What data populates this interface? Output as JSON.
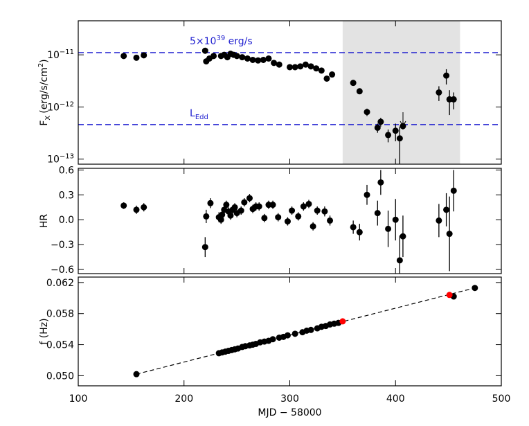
{
  "chart_data": [
    {
      "type": "scatter",
      "log_y": true,
      "color": "#000000",
      "ylabel": {
        "main": "F",
        "sub": "X",
        "unit": "(erg/s/cm",
        "sup": "2",
        "close": ")"
      },
      "ylim": [
        8e-14,
        4.5e-11
      ],
      "yticks": [
        {
          "value": 1e-13,
          "label": "10",
          "exponent": "−13"
        },
        {
          "value": 1e-12,
          "label": "10",
          "exponent": "−12"
        },
        {
          "value": 1e-11,
          "label": "10",
          "exponent": "−11"
        }
      ],
      "shade": [
        350,
        461
      ],
      "shade_color": "#e3e3e3",
      "hlines": [
        {
          "value": 1.1e-11,
          "color": "#1f1fd0",
          "base": "5×10",
          "exp": "39",
          "unit": " erg/s"
        },
        {
          "value": 4.6e-13,
          "color": "#1f1fd0",
          "base": "L",
          "sub": "Edd"
        }
      ],
      "x": [
        143,
        155,
        162,
        220,
        221,
        224,
        228,
        235,
        238,
        241,
        244,
        247,
        250,
        255,
        260,
        265,
        270,
        275,
        280,
        285,
        290,
        300,
        305,
        310,
        315,
        320,
        325,
        330,
        335,
        340,
        360,
        366,
        373,
        383,
        386,
        393,
        400,
        404,
        407,
        441,
        448,
        451,
        455
      ],
      "values": [
        9.5e-12,
        8.8e-12,
        9.8e-12,
        1.2e-11,
        7.5e-12,
        8.5e-12,
        9.5e-12,
        9.5e-12,
        1e-11,
        9e-12,
        1.05e-11,
        1e-11,
        9.5e-12,
        9e-12,
        8.5e-12,
        8e-12,
        7.8e-12,
        8e-12,
        8.5e-12,
        7e-12,
        6.5e-12,
        5.8e-12,
        5.8e-12,
        6e-12,
        6.5e-12,
        6e-12,
        5.5e-12,
        5e-12,
        3.5e-12,
        4.2e-12,
        2.9e-12,
        2e-12,
        8e-13,
        4e-13,
        5.2e-13,
        2.9e-13,
        3.5e-13,
        2.5e-13,
        4.3e-13,
        1.9e-12,
        4e-12,
        1.4e-12,
        1.4e-12
      ],
      "errors": [
        4e-13,
        4e-13,
        4e-13,
        1.5e-12,
        5e-13,
        4e-13,
        4e-13,
        4e-13,
        4e-13,
        4e-13,
        4e-13,
        4e-13,
        4e-13,
        4e-13,
        4e-13,
        3e-13,
        3e-13,
        3e-13,
        3e-13,
        3e-13,
        3e-13,
        2e-13,
        2e-13,
        2e-13,
        2e-13,
        2e-13,
        2e-13,
        2e-13,
        2e-13,
        2e-13,
        2e-13,
        2e-13,
        1.3e-13,
        8e-14,
        1e-13,
        8e-14,
        1.3e-13,
        1.7e-13,
        6e-14,
        6e-13,
        1.3e-12,
        7e-13,
        5e-13
      ]
    },
    {
      "type": "scatter",
      "color": "#000000",
      "ylabel": "HR",
      "ylim": [
        -0.65,
        0.62
      ],
      "yticks": [
        {
          "value": -0.6,
          "label": "−0.6"
        },
        {
          "value": -0.3,
          "label": "−0.3"
        },
        {
          "value": 0,
          "label": "0.0"
        },
        0.3,
        0.6
      ],
      "x": [
        143,
        155,
        162,
        220,
        221,
        225,
        233,
        235,
        236,
        238,
        240,
        242,
        244,
        246,
        248,
        250,
        254,
        257,
        262,
        265,
        268,
        271,
        276,
        280,
        284,
        289,
        298,
        302,
        308,
        313,
        318,
        322,
        326,
        333,
        338,
        360,
        366,
        373,
        383,
        386,
        393,
        400,
        404,
        407,
        441,
        448,
        451,
        455
      ],
      "values": [
        0.17,
        0.12,
        0.15,
        -0.33,
        0.04,
        0.2,
        0.03,
        0,
        0.06,
        0.12,
        0.18,
        0.1,
        0.05,
        0.12,
        0.15,
        0.08,
        0.11,
        0.21,
        0.26,
        0.13,
        0.16,
        0.16,
        0.02,
        0.18,
        0.18,
        0.03,
        -0.02,
        0.11,
        0.04,
        0.16,
        0.19,
        -0.08,
        0.11,
        0.1,
        -0.01,
        -0.09,
        -0.15,
        0.3,
        0.08,
        0.45,
        -0.11,
        0,
        -0.49,
        -0.2,
        -0.01,
        0.12,
        -0.17,
        0.35
      ],
      "errors": [
        0.04,
        0.05,
        0.05,
        0.12,
        0.08,
        0.06,
        0.06,
        0.05,
        0.05,
        0.05,
        0.05,
        0.05,
        0.05,
        0.05,
        0.05,
        0.05,
        0.05,
        0.05,
        0.05,
        0.05,
        0.05,
        0.05,
        0.05,
        0.05,
        0.05,
        0.05,
        0.05,
        0.05,
        0.05,
        0.05,
        0.05,
        0.05,
        0.05,
        0.06,
        0.06,
        0.08,
        0.1,
        0.12,
        0.15,
        0.15,
        0.22,
        0.25,
        0.3,
        0.25,
        0.2,
        0.2,
        0.45,
        0.25
      ]
    },
    {
      "type": "scatter",
      "ylabel": "f (Hz)",
      "xlabel": "MJD − 58000",
      "xlim": [
        100,
        500
      ],
      "xticks": [
        100,
        200,
        300,
        400,
        500
      ],
      "ylim": [
        0.0487,
        0.0627
      ],
      "yticks": [
        {
          "value": 0.05,
          "label": "0.050"
        },
        {
          "value": 0.054,
          "label": "0.054"
        },
        {
          "value": 0.058,
          "label": "0.058"
        },
        {
          "value": 0.062,
          "label": "0.062"
        }
      ],
      "fit": {
        "x": [
          155,
          475
        ],
        "values": [
          0.0502,
          0.0613
        ],
        "color": "#000000"
      },
      "series": [
        {
          "color": "#000000",
          "x": [
            155,
            233,
            236,
            239,
            242,
            245,
            248,
            251,
            255,
            258,
            262,
            265,
            268,
            272,
            276,
            280,
            284,
            290,
            294,
            298,
            305,
            312,
            316,
            320,
            326,
            330,
            334,
            338,
            342,
            346,
            455,
            475
          ],
          "values": [
            0.0502,
            0.0529,
            0.053,
            0.0531,
            0.0532,
            0.0533,
            0.0534,
            0.0535,
            0.0537,
            0.0538,
            0.0539,
            0.054,
            0.0541,
            0.0543,
            0.0544,
            0.0545,
            0.0547,
            0.0549,
            0.055,
            0.0552,
            0.0554,
            0.0556,
            0.0558,
            0.0559,
            0.0561,
            0.0563,
            0.0564,
            0.0566,
            0.0567,
            0.0568,
            0.0602,
            0.0613
          ]
        },
        {
          "color": "#ff0000",
          "x": [
            350,
            451
          ],
          "values": [
            0.057,
            0.0604
          ]
        }
      ]
    }
  ]
}
